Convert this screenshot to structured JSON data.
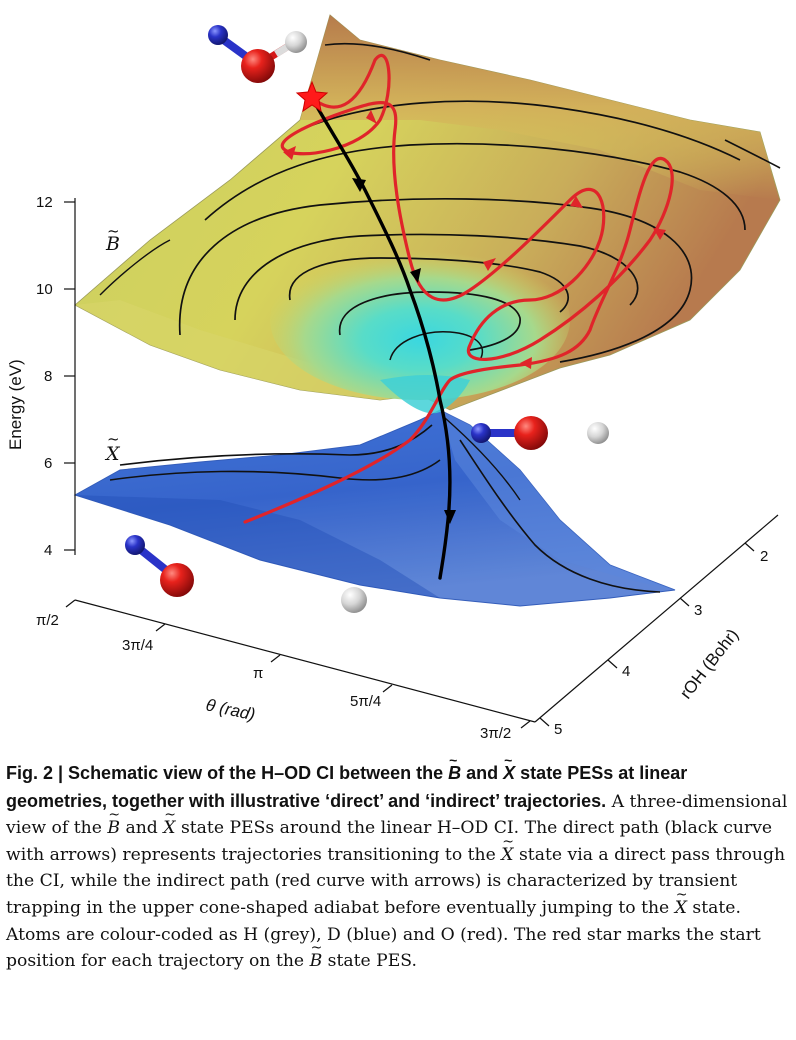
{
  "figure": {
    "yaxis": {
      "label": "Energy (eV)",
      "ticks": [
        "12",
        "10",
        "8",
        "6",
        "4"
      ]
    },
    "theta_axis": {
      "label": "θ (rad)",
      "ticks": [
        "π/2",
        "3π/4",
        "π",
        "5π/4",
        "3π/2"
      ]
    },
    "roh_axis": {
      "label": "rOH (Bohr)",
      "ticks": [
        "2",
        "3",
        "4",
        "5"
      ]
    },
    "state_labels": {
      "upper": "B",
      "lower": "X"
    },
    "colors": {
      "direct_path": "#000000",
      "indirect_path": "#e0242a",
      "start_star": "#ff1a1a",
      "atom_H": "#d9d9d9",
      "atom_D": "#2a33c8",
      "atom_O": "#d41818"
    }
  },
  "caption": {
    "label": "Fig. 2 | ",
    "title_a": "Schematic view of the H–OD CI between the ",
    "title_b": " and ",
    "title_c": " state PESs at linear geometries, together with illustrative ‘direct’ and ‘indirect’ trajectories.",
    "state_B": "B",
    "state_X": "X",
    "body_1": " A three-dimensional view of the ",
    "body_2": " and ",
    "body_3": " state PESs around the linear H–OD CI. The direct path (black curve with arrows) represents trajectories transitioning to the ",
    "body_4": " state via a direct pass through the CI, while the indirect path (red curve with arrows) is characterized by transient trapping in the upper cone-shaped adiabat before eventually jumping to the ",
    "body_5": " state. Atoms are colour-coded as H (grey), D (blue) and O (red). The red star marks the start position for each trajectory on the ",
    "body_6": " state PES."
  }
}
